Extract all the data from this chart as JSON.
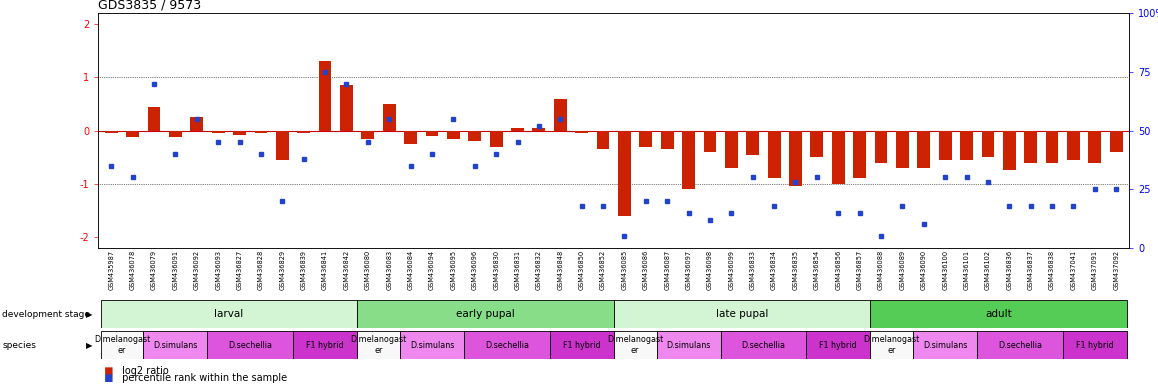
{
  "title": "GDS3835 / 9573",
  "samples": [
    "GSM435987",
    "GSM436078",
    "GSM436079",
    "GSM436091",
    "GSM436092",
    "GSM436093",
    "GSM436827",
    "GSM436828",
    "GSM436829",
    "GSM436839",
    "GSM436841",
    "GSM436842",
    "GSM436080",
    "GSM436083",
    "GSM436084",
    "GSM436094",
    "GSM436095",
    "GSM436096",
    "GSM436830",
    "GSM436831",
    "GSM436832",
    "GSM436848",
    "GSM436850",
    "GSM436852",
    "GSM436085",
    "GSM436086",
    "GSM436087",
    "GSM436097",
    "GSM436098",
    "GSM436099",
    "GSM436833",
    "GSM436834",
    "GSM436835",
    "GSM436854",
    "GSM436856",
    "GSM436857",
    "GSM436088",
    "GSM436089",
    "GSM436090",
    "GSM436100",
    "GSM436101",
    "GSM436102",
    "GSM436836",
    "GSM436837",
    "GSM436838",
    "GSM437041",
    "GSM437091",
    "GSM437092"
  ],
  "log2_ratio": [
    -0.05,
    -0.12,
    0.45,
    -0.12,
    0.25,
    -0.05,
    -0.08,
    -0.05,
    -0.55,
    -0.05,
    1.3,
    0.85,
    -0.15,
    0.5,
    -0.25,
    -0.1,
    -0.15,
    -0.2,
    -0.3,
    0.05,
    0.05,
    0.6,
    -0.05,
    -0.35,
    -1.6,
    -0.3,
    -0.35,
    -1.1,
    -0.4,
    -0.7,
    -0.45,
    -0.9,
    -1.05,
    -0.5,
    -1.0,
    -0.9,
    -0.6,
    -0.7,
    -0.7,
    -0.55,
    -0.55,
    -0.5,
    -0.75,
    -0.6,
    -0.6,
    -0.55,
    -0.6,
    -0.4
  ],
  "percentile": [
    35,
    30,
    70,
    40,
    55,
    45,
    45,
    40,
    20,
    38,
    75,
    70,
    45,
    55,
    35,
    40,
    55,
    35,
    40,
    45,
    52,
    55,
    18,
    18,
    5,
    20,
    20,
    15,
    12,
    15,
    30,
    18,
    28,
    30,
    15,
    15,
    5,
    18,
    10,
    30,
    30,
    28,
    18,
    18,
    18,
    18,
    25,
    25
  ],
  "development_stages": [
    {
      "label": "larval",
      "start": 0,
      "end": 11,
      "color": "#d4f5d4"
    },
    {
      "label": "early pupal",
      "start": 12,
      "end": 23,
      "color": "#88dd88"
    },
    {
      "label": "late pupal",
      "start": 24,
      "end": 35,
      "color": "#d4f5d4"
    },
    {
      "label": "adult",
      "start": 36,
      "end": 47,
      "color": "#55cc55"
    }
  ],
  "species_groups": [
    {
      "label": "D.melanogast\ner",
      "start": 0,
      "end": 1,
      "color": "#f8f8f8"
    },
    {
      "label": "D.simulans",
      "start": 2,
      "end": 4,
      "color": "#ee88ee"
    },
    {
      "label": "D.sechellia",
      "start": 5,
      "end": 8,
      "color": "#dd55dd"
    },
    {
      "label": "F1 hybrid",
      "start": 9,
      "end": 11,
      "color": "#cc33cc"
    },
    {
      "label": "D.melanogast\ner",
      "start": 12,
      "end": 13,
      "color": "#f8f8f8"
    },
    {
      "label": "D.simulans",
      "start": 14,
      "end": 16,
      "color": "#ee88ee"
    },
    {
      "label": "D.sechellia",
      "start": 17,
      "end": 20,
      "color": "#dd55dd"
    },
    {
      "label": "F1 hybrid",
      "start": 21,
      "end": 23,
      "color": "#cc33cc"
    },
    {
      "label": "D.melanogast\ner",
      "start": 24,
      "end": 25,
      "color": "#f8f8f8"
    },
    {
      "label": "D.simulans",
      "start": 26,
      "end": 28,
      "color": "#ee88ee"
    },
    {
      "label": "D.sechellia",
      "start": 29,
      "end": 32,
      "color": "#dd55dd"
    },
    {
      "label": "F1 hybrid",
      "start": 33,
      "end": 35,
      "color": "#cc33cc"
    },
    {
      "label": "D.melanogast\ner",
      "start": 36,
      "end": 37,
      "color": "#f8f8f8"
    },
    {
      "label": "D.simulans",
      "start": 38,
      "end": 40,
      "color": "#ee88ee"
    },
    {
      "label": "D.sechellia",
      "start": 41,
      "end": 44,
      "color": "#dd55dd"
    },
    {
      "label": "F1 hybrid",
      "start": 45,
      "end": 47,
      "color": "#cc33cc"
    }
  ],
  "ylim": [
    -2.2,
    2.2
  ],
  "yticks_left": [
    -2,
    -1,
    0,
    1,
    2
  ],
  "yticks_right": [
    0,
    25,
    50,
    75,
    100
  ],
  "bar_color": "#cc2200",
  "dot_color": "#2244cc",
  "hline_color": "#cc0000"
}
